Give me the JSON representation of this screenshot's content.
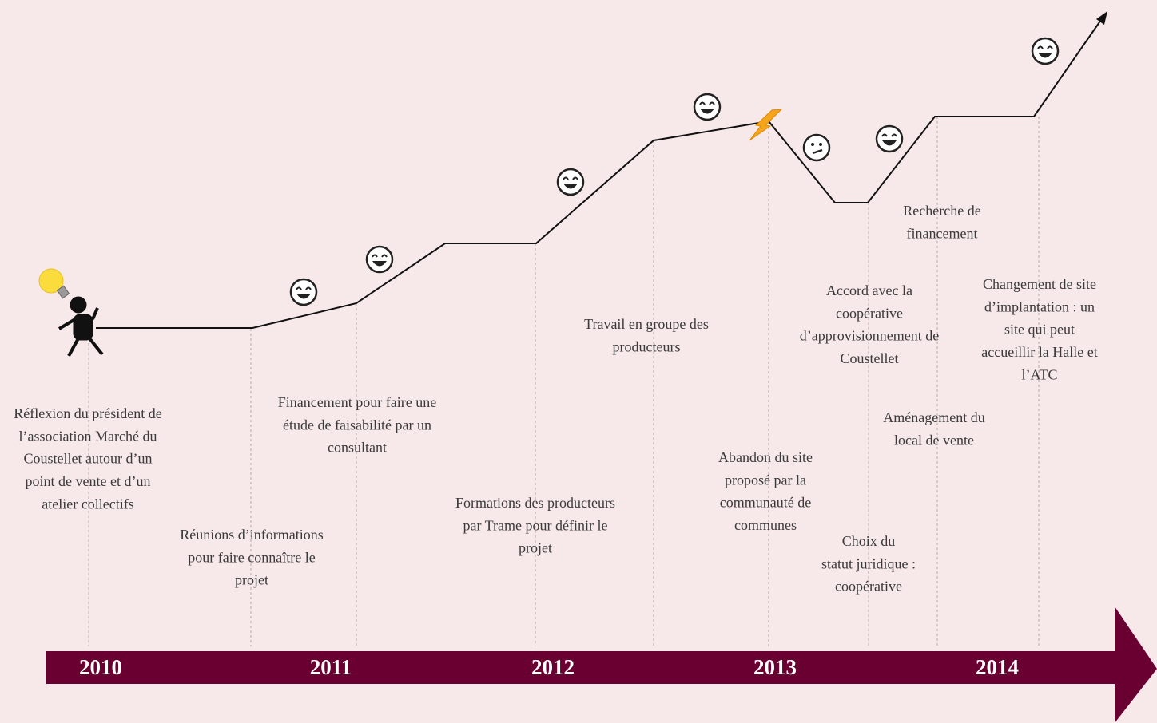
{
  "years": [
    "2010",
    "2011",
    "2012",
    "2013",
    "2014"
  ],
  "events": [
    {
      "lines": [
        "Réflexion du président de",
        "l’association Marché du",
        "Coustellet autour d’un",
        "point de vente et d’un",
        "atelier collectifs"
      ]
    },
    {
      "lines": [
        "Réunions d’informations",
        "pour faire connaître le",
        "projet"
      ]
    },
    {
      "lines": [
        "Financement pour faire une",
        "étude de faisabilité par un",
        "consultant"
      ]
    },
    {
      "lines": [
        "Formations des producteurs",
        "par Trame pour définir le",
        "projet"
      ]
    },
    {
      "lines": [
        "Travail en groupe des",
        "producteurs"
      ]
    },
    {
      "lines": [
        "Abandon du site",
        "proposé par la",
        "communauté de",
        "communes"
      ]
    },
    {
      "lines": [
        "Accord avec la",
        "coopérative",
        "d’approvisionnement de",
        "Coustellet"
      ]
    },
    {
      "lines": [
        "Choix du",
        "statut juridique :",
        "coopérative"
      ]
    },
    {
      "lines": [
        "Recherche de",
        "financement"
      ]
    },
    {
      "lines": [
        "Aménagement du",
        "local de vente"
      ]
    },
    {
      "lines": [
        "Changement de site",
        "d’implantation : un",
        "site qui peut",
        "accueillir la Halle et",
        "l’ATC"
      ]
    }
  ]
}
